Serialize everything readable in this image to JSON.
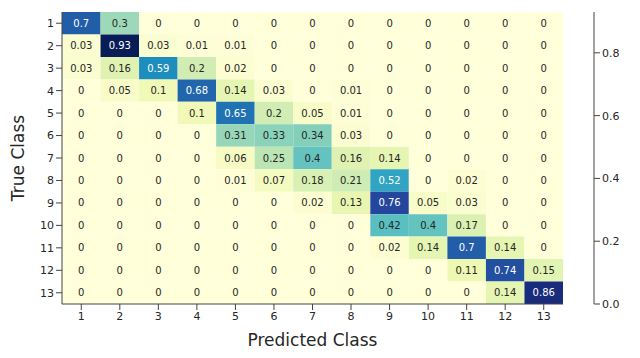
{
  "chart_data": {
    "type": "heatmap",
    "x_label": "Predicted Class",
    "y_label": "True Class",
    "xlim": [
      0.5,
      13.5
    ],
    "xticks": [
      1,
      2,
      3,
      4,
      5,
      6,
      7,
      8,
      9,
      10,
      11,
      12,
      13
    ],
    "ylim": [
      0.5,
      13.5
    ],
    "yticks": [
      1,
      2,
      3,
      4,
      5,
      6,
      7,
      8,
      9,
      10,
      11,
      12,
      13
    ],
    "color": "YlGnBu",
    "data_labels": true,
    "cells": [
      [
        0.7,
        0.3,
        0,
        0,
        0,
        0,
        0,
        0,
        0,
        0,
        0,
        0,
        0
      ],
      [
        0.03,
        0.93,
        0.03,
        0.01,
        0.01,
        0,
        0,
        0,
        0,
        0,
        0,
        0,
        0
      ],
      [
        0.03,
        0.16,
        0.59,
        0.2,
        0.02,
        0,
        0,
        0,
        0,
        0,
        0,
        0,
        0
      ],
      [
        0,
        0.05,
        0.1,
        0.68,
        0.14,
        0.03,
        0,
        0.01,
        0,
        0,
        0,
        0,
        0
      ],
      [
        0,
        0,
        0,
        0.1,
        0.65,
        0.2,
        0.05,
        0.01,
        0,
        0,
        0,
        0,
        0
      ],
      [
        0,
        0,
        0,
        0,
        0.31,
        0.33,
        0.34,
        0.03,
        0,
        0,
        0,
        0,
        0
      ],
      [
        0,
        0,
        0,
        0,
        0.06,
        0.25,
        0.4,
        0.16,
        0.14,
        0,
        0,
        0,
        0
      ],
      [
        0,
        0,
        0,
        0,
        0.01,
        0.07,
        0.18,
        0.21,
        0.52,
        0,
        0.02,
        0,
        0
      ],
      [
        0,
        0,
        0,
        0,
        0,
        0,
        0.02,
        0.13,
        0.76,
        0.05,
        0.03,
        0,
        0
      ],
      [
        0,
        0,
        0,
        0,
        0,
        0,
        0,
        0,
        0.42,
        0.4,
        0.17,
        0,
        0
      ],
      [
        0,
        0,
        0,
        0,
        0,
        0,
        0,
        0,
        0.02,
        0.14,
        0.7,
        0.14,
        0
      ],
      [
        0,
        0,
        0,
        0,
        0,
        0,
        0,
        0,
        0,
        0,
        0.11,
        0.74,
        0.15
      ],
      [
        0,
        0,
        0,
        0,
        0,
        0,
        0,
        0,
        0,
        0,
        0,
        0.14,
        0.86
      ]
    ],
    "colorbar": {
      "range": [
        0,
        0.93
      ],
      "ticks": [
        {
          "value": 0,
          "label": "0.0"
        },
        0.2,
        0.4,
        0.6,
        0.8
      ]
    }
  }
}
